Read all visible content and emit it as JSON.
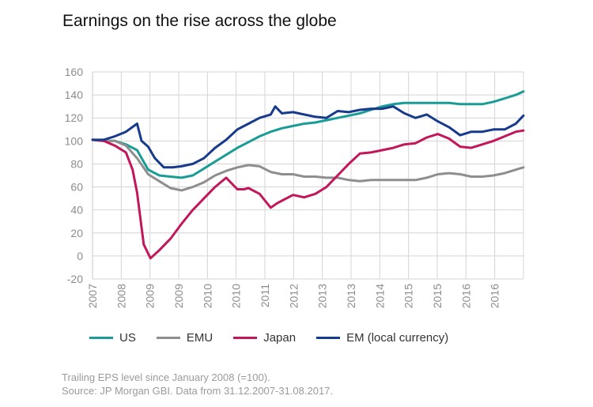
{
  "chart_data": {
    "type": "line",
    "title": "Earnings on the rise across the globe",
    "xlabel": "",
    "ylabel": "",
    "ylim": [
      -20,
      160
    ],
    "yticks": [
      -20,
      0,
      20,
      40,
      60,
      80,
      100,
      120,
      140,
      160
    ],
    "xlim": [
      2008.0,
      2017.67
    ],
    "x_tick_labels": [
      "2007",
      "2008",
      "2009",
      "2009",
      "2010",
      "2010",
      "2011",
      "2012",
      "2013",
      "2013",
      "2014",
      "2015",
      "2015",
      "2016",
      "2016"
    ],
    "grid": true,
    "legend_position": "bottom",
    "series": [
      {
        "name": "US",
        "color": "#1a9c96",
        "x": [
          2008.0,
          2008.25,
          2008.5,
          2008.75,
          2009.0,
          2009.25,
          2009.5,
          2009.75,
          2010.0,
          2010.25,
          2010.5,
          2010.75,
          2011.0,
          2011.25,
          2011.5,
          2011.75,
          2012.0,
          2012.25,
          2012.5,
          2012.75,
          2013.0,
          2013.25,
          2013.5,
          2013.75,
          2014.0,
          2014.25,
          2014.5,
          2014.75,
          2015.0,
          2015.25,
          2015.5,
          2015.75,
          2016.0,
          2016.25,
          2016.5,
          2016.75,
          2017.0,
          2017.25,
          2017.5,
          2017.67
        ],
        "values": [
          101,
          100,
          100,
          97,
          92,
          75,
          70,
          69,
          68,
          70,
          76,
          82,
          88,
          94,
          99,
          104,
          108,
          111,
          113,
          115,
          116,
          118,
          120,
          122,
          124,
          127,
          130,
          132,
          133,
          133,
          133,
          133,
          133,
          132,
          132,
          132,
          134,
          137,
          140,
          143
        ]
      },
      {
        "name": "EMU",
        "color": "#8e8e8e",
        "x": [
          2008.0,
          2008.25,
          2008.5,
          2008.75,
          2009.0,
          2009.25,
          2009.5,
          2009.75,
          2010.0,
          2010.25,
          2010.5,
          2010.75,
          2011.0,
          2011.25,
          2011.5,
          2011.75,
          2012.0,
          2012.25,
          2012.5,
          2012.75,
          2013.0,
          2013.25,
          2013.5,
          2013.75,
          2014.0,
          2014.25,
          2014.5,
          2014.75,
          2015.0,
          2015.25,
          2015.5,
          2015.75,
          2016.0,
          2016.25,
          2016.5,
          2016.75,
          2017.0,
          2017.25,
          2017.5,
          2017.67
        ],
        "values": [
          101,
          100,
          100,
          96,
          85,
          71,
          65,
          59,
          57,
          60,
          64,
          70,
          74,
          77,
          79,
          78,
          73,
          71,
          71,
          69,
          69,
          68,
          68,
          66,
          65,
          66,
          66,
          66,
          66,
          66,
          68,
          71,
          72,
          71,
          69,
          69,
          70,
          72,
          75,
          77
        ]
      },
      {
        "name": "Japan",
        "color": "#c2185b",
        "x": [
          2008.0,
          2008.25,
          2008.5,
          2008.75,
          2008.9,
          2009.0,
          2009.15,
          2009.3,
          2009.5,
          2009.75,
          2010.0,
          2010.25,
          2010.5,
          2010.75,
          2011.0,
          2011.25,
          2011.4,
          2011.5,
          2011.75,
          2012.0,
          2012.15,
          2012.25,
          2012.5,
          2012.75,
          2013.0,
          2013.25,
          2013.5,
          2013.75,
          2014.0,
          2014.25,
          2014.5,
          2014.75,
          2015.0,
          2015.25,
          2015.5,
          2015.75,
          2016.0,
          2016.25,
          2016.5,
          2016.75,
          2017.0,
          2017.25,
          2017.5,
          2017.67
        ],
        "values": [
          101,
          100,
          96,
          90,
          75,
          55,
          10,
          -2,
          5,
          15,
          28,
          40,
          50,
          60,
          68,
          58,
          58,
          59,
          54,
          42,
          46,
          48,
          53,
          51,
          54,
          60,
          70,
          80,
          89,
          90,
          92,
          94,
          97,
          98,
          103,
          106,
          102,
          95,
          94,
          97,
          100,
          104,
          108,
          109
        ]
      },
      {
        "name": "EM (local currency)",
        "color": "#173a8c",
        "x": [
          2008.0,
          2008.25,
          2008.5,
          2008.75,
          2009.0,
          2009.1,
          2009.25,
          2009.4,
          2009.6,
          2009.8,
          2010.0,
          2010.25,
          2010.5,
          2010.75,
          2011.0,
          2011.25,
          2011.5,
          2011.75,
          2012.0,
          2012.1,
          2012.25,
          2012.5,
          2012.75,
          2013.0,
          2013.25,
          2013.5,
          2013.75,
          2014.0,
          2014.25,
          2014.5,
          2014.75,
          2015.0,
          2015.25,
          2015.5,
          2015.75,
          2016.0,
          2016.25,
          2016.5,
          2016.75,
          2017.0,
          2017.25,
          2017.5,
          2017.67
        ],
        "values": [
          101,
          101,
          104,
          108,
          115,
          100,
          95,
          85,
          77,
          77,
          78,
          80,
          85,
          94,
          101,
          110,
          115,
          120,
          123,
          130,
          124,
          125,
          123,
          121,
          120,
          126,
          125,
          127,
          128,
          128,
          130,
          124,
          120,
          123,
          117,
          112,
          105,
          108,
          108,
          110,
          110,
          115,
          122
        ]
      }
    ],
    "notes": [
      "Trailing EPS level since January 2008 (=100).",
      "Source: JP Morgan GBI. Data from 31.12.2007-31.08.2017."
    ]
  }
}
